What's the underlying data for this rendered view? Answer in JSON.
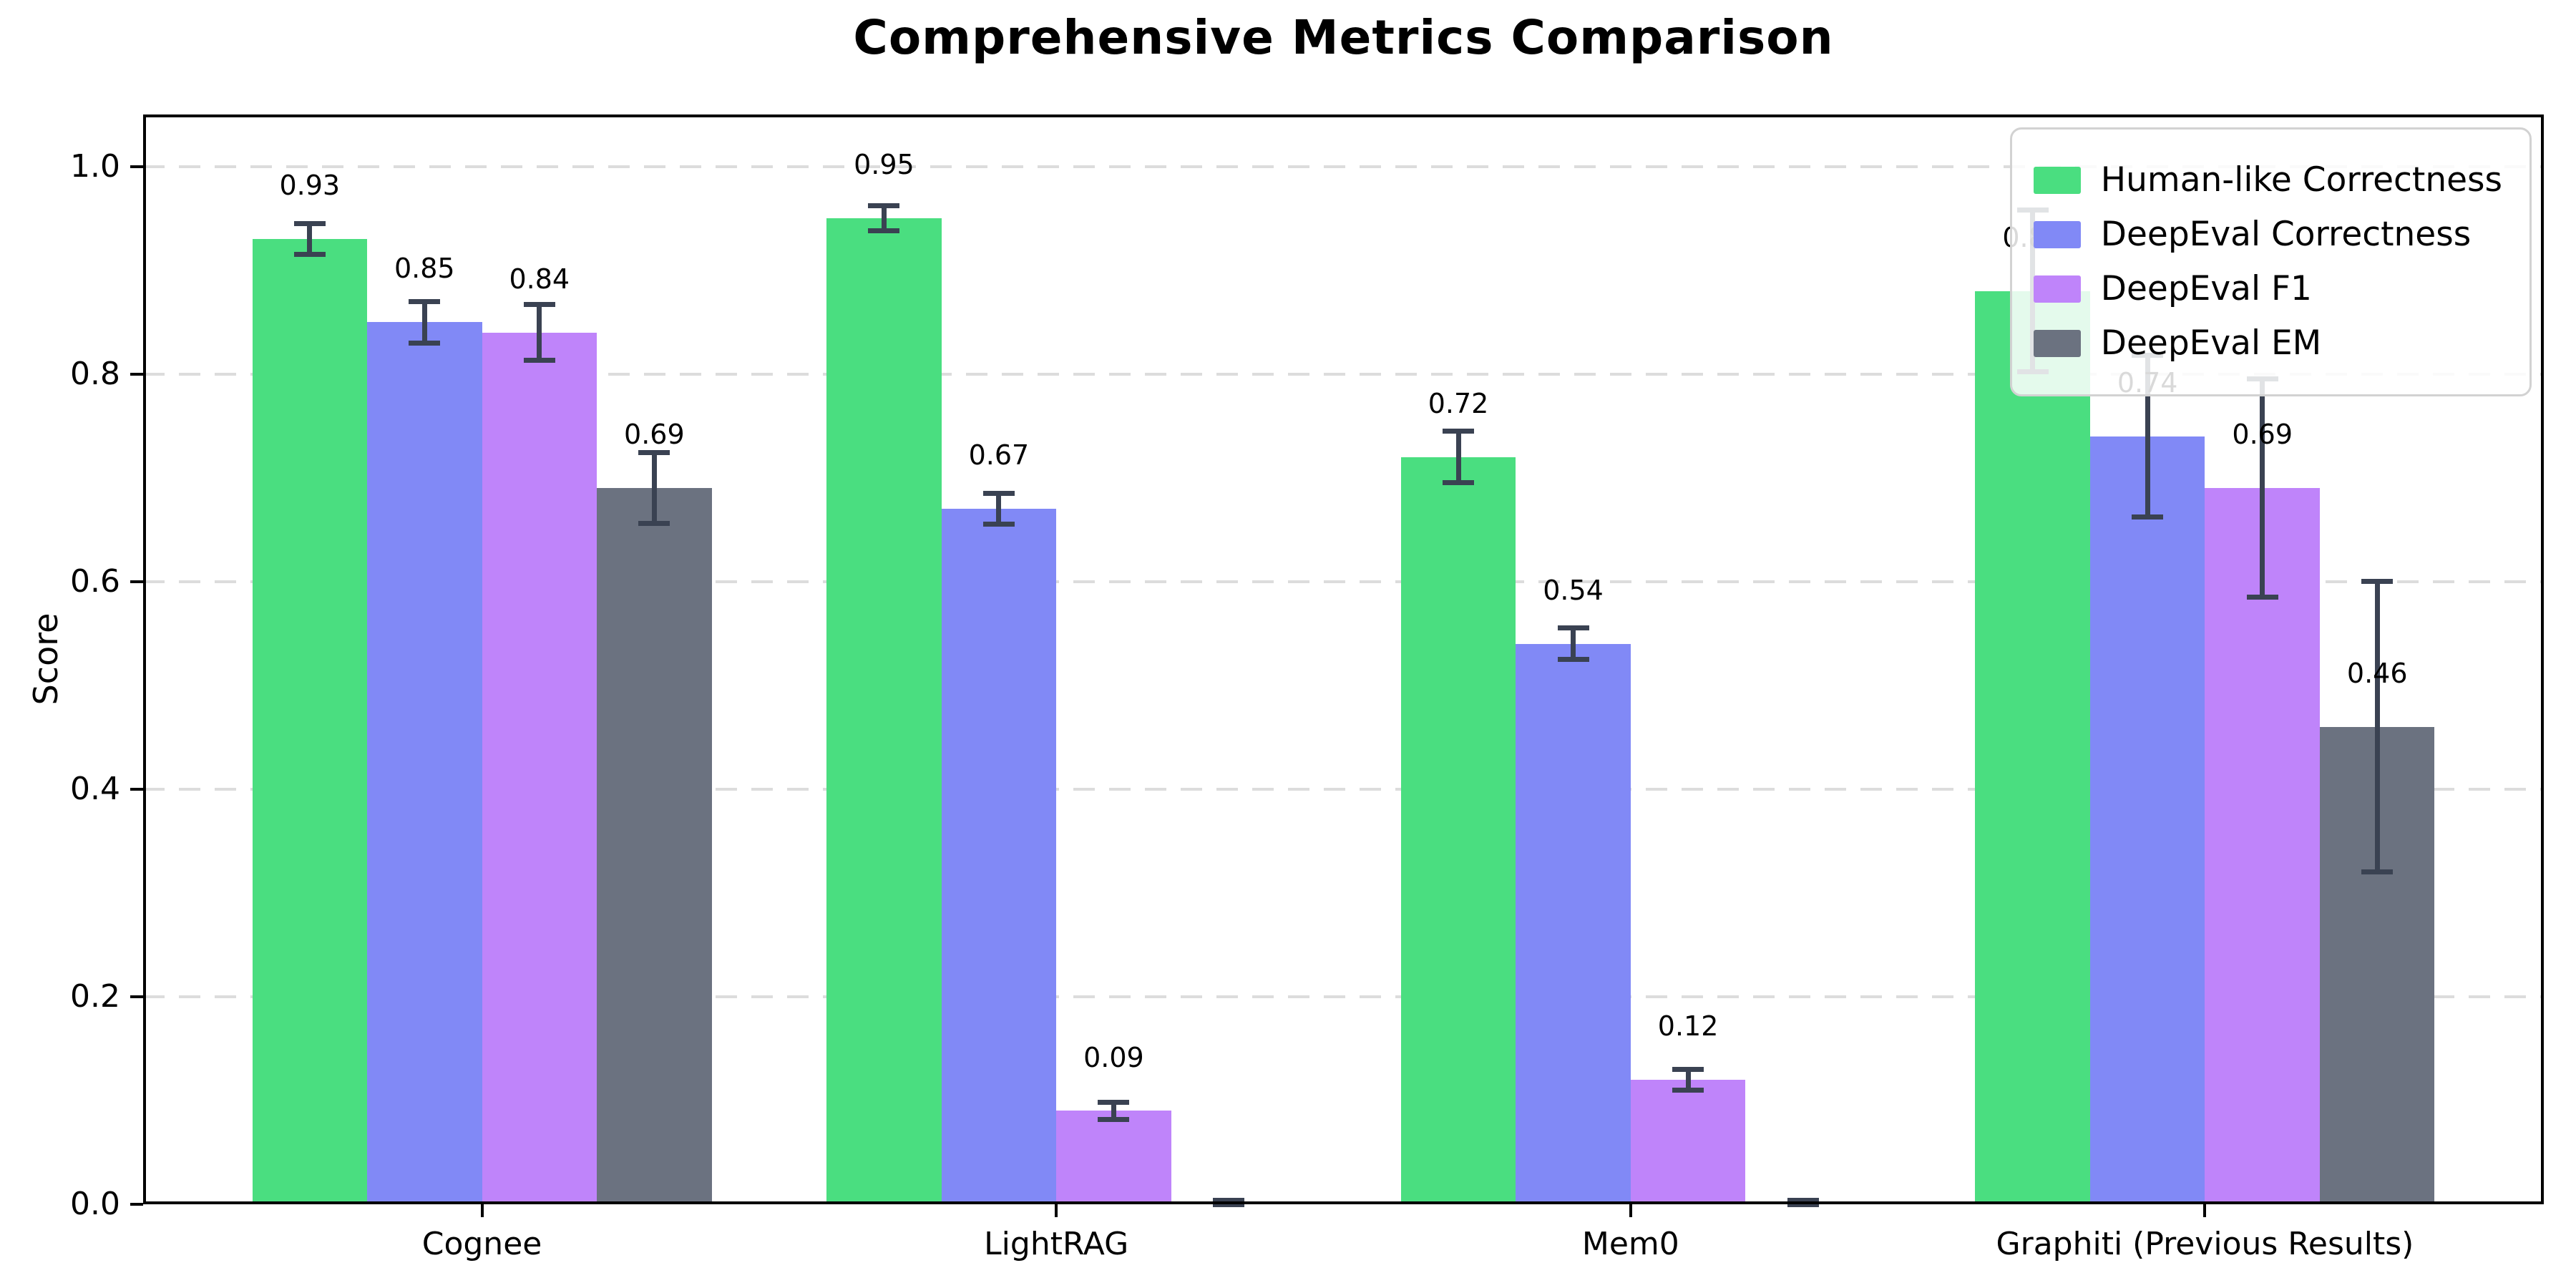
{
  "chart_data": {
    "type": "bar",
    "title": "Comprehensive Metrics Comparison",
    "ylabel": "Score",
    "categories": [
      "Cognee",
      "LightRAG",
      "Mem0",
      "Graphiti (Previous Results)"
    ],
    "series": [
      {
        "name": "Human-like Correctness",
        "color": "#4ade80",
        "values": [
          0.93,
          0.95,
          0.72,
          0.88
        ],
        "errors": [
          0.015,
          0.012,
          0.025,
          0.078
        ],
        "value_labels": [
          "0.93",
          "0.95",
          "0.72",
          "0.88"
        ]
      },
      {
        "name": "DeepEval Correctness",
        "color": "#8189f6",
        "values": [
          0.85,
          0.67,
          0.54,
          0.74
        ],
        "errors": [
          0.02,
          0.015,
          0.015,
          0.078
        ],
        "value_labels": [
          "0.85",
          "0.67",
          "0.54",
          "0.74"
        ]
      },
      {
        "name": "DeepEval F1",
        "color": "#bf84fa",
        "values": [
          0.84,
          0.09,
          0.12,
          0.69
        ],
        "errors": [
          0.027,
          0.008,
          0.01,
          0.105
        ],
        "value_labels": [
          "0.84",
          "0.09",
          "0.12",
          "0.69"
        ]
      },
      {
        "name": "DeepEval EM",
        "color": "#6b7280",
        "values": [
          0.69,
          0.0,
          0.0,
          0.46
        ],
        "errors": [
          0.034,
          0.004,
          0.004,
          0.14
        ],
        "value_labels": [
          "0.69",
          null,
          null,
          "0.46"
        ]
      }
    ],
    "ytick_labels": [
      "0.0",
      "0.2",
      "0.4",
      "0.6",
      "0.8",
      "1.0"
    ],
    "yticks": [
      0.0,
      0.2,
      0.4,
      0.6,
      0.8,
      1.0
    ],
    "ylim": [
      0,
      1.05
    ],
    "xlim": [
      -0.59,
      3.59
    ],
    "bar_width": 0.2,
    "grid": {
      "axis": "y",
      "style": "dashed",
      "color": "#dcdcdc"
    },
    "legend_position": "upper right",
    "error_bar_color": "#3a4252",
    "axis_color": "#000000",
    "value_label_offset": 0.035
  }
}
